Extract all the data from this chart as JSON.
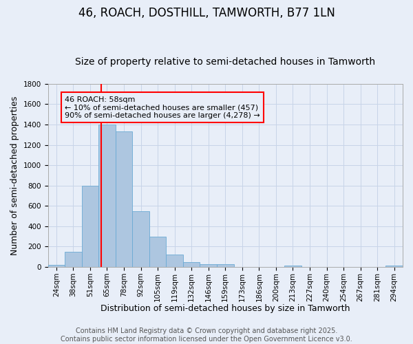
{
  "title1": "46, ROACH, DOSTHILL, TAMWORTH, B77 1LN",
  "title2": "Size of property relative to semi-detached houses in Tamworth",
  "xlabel": "Distribution of semi-detached houses by size in Tamworth",
  "ylabel": "Number of semi-detached properties",
  "footer1": "Contains HM Land Registry data © Crown copyright and database right 2025.",
  "footer2": "Contains public sector information licensed under the Open Government Licence v3.0.",
  "categories": [
    "24sqm",
    "38sqm",
    "51sqm",
    "65sqm",
    "78sqm",
    "92sqm",
    "105sqm",
    "119sqm",
    "132sqm",
    "146sqm",
    "159sqm",
    "173sqm",
    "186sqm",
    "200sqm",
    "213sqm",
    "227sqm",
    "240sqm",
    "254sqm",
    "267sqm",
    "281sqm",
    "294sqm"
  ],
  "values": [
    20,
    150,
    800,
    1400,
    1330,
    550,
    300,
    120,
    50,
    25,
    25,
    0,
    0,
    0,
    15,
    0,
    0,
    0,
    0,
    0,
    15
  ],
  "bar_color": "#adc6e0",
  "bar_edge_color": "#6aaad4",
  "grid_color": "#c8d4e8",
  "background_color": "#e8eef8",
  "annotation_text": "46 ROACH: 58sqm\n← 10% of semi-detached houses are smaller (457)\n90% of semi-detached houses are larger (4,278) →",
  "ylim": [
    0,
    1800
  ],
  "red_line_index": 2.65,
  "title1_fontsize": 12,
  "title2_fontsize": 10,
  "axis_label_fontsize": 9,
  "tick_fontsize": 7.5,
  "footer_fontsize": 7,
  "ann_fontsize": 8
}
